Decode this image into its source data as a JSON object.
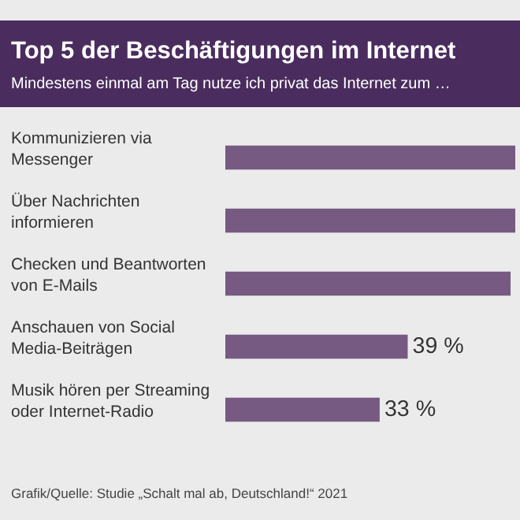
{
  "chart_data": {
    "type": "bar",
    "orientation": "horizontal",
    "title": "Top 5 der Beschäftigungen im Internet",
    "subtitle": "Mindestens einmal am Tag nutze ich privat das Internet zum …",
    "categories": [
      "Kommunizieren via Messenger",
      "Über Nachrichten informieren",
      "Checken und Beantworten von E-Mails",
      "Anschauen von Social Media-Beiträgen",
      "Musik hören per Streaming oder Internet-Radio"
    ],
    "values": [
      62,
      62,
      61,
      39,
      33
    ],
    "value_labels": [
      null,
      null,
      null,
      "39 %",
      "33 %"
    ],
    "color": "#765a82",
    "xlim": [
      0,
      62
    ],
    "annotations": [
      "Grafik/Quelle: Studie „Schalt mal ab, Deutschland!“ 2021"
    ]
  }
}
